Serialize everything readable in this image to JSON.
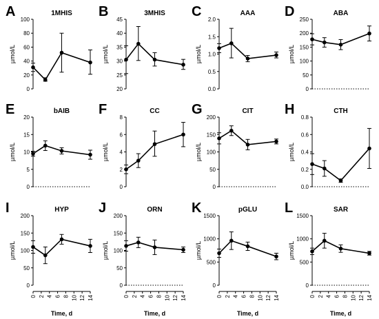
{
  "x_values": [
    0,
    3,
    7,
    14
  ],
  "x_ticks": [
    0,
    2,
    4,
    6,
    8,
    10,
    12,
    14
  ],
  "x_label": "Time, d",
  "y_label": "µmol/L",
  "chart_data": [
    {
      "type": "line",
      "letter": "A",
      "title": "1MHIS",
      "x": [
        0,
        3,
        7,
        14
      ],
      "y": [
        31,
        13,
        52,
        38
      ],
      "err_low": [
        25,
        11,
        24,
        21
      ],
      "err_high": [
        37,
        16,
        80,
        56
      ],
      "ylim": [
        0,
        100
      ],
      "yticks": [
        0,
        20,
        40,
        60,
        80,
        100
      ],
      "zero_line": false
    },
    {
      "type": "line",
      "letter": "B",
      "title": "3MHIS",
      "x": [
        0,
        3,
        7,
        14
      ],
      "y": [
        30.5,
        36.2,
        30.5,
        28.7
      ],
      "err_low": [
        25.5,
        30.2,
        28.2,
        27.0
      ],
      "err_high": [
        35.5,
        42.4,
        33.0,
        30.6
      ],
      "ylim": [
        20,
        45
      ],
      "yticks": [
        20,
        25,
        30,
        35,
        40,
        45
      ],
      "zero_line": false
    },
    {
      "type": "line",
      "letter": "C",
      "title": "AAA",
      "x": [
        0,
        3,
        7,
        14
      ],
      "y": [
        1.17,
        1.31,
        0.87,
        0.97
      ],
      "err_low": [
        1.04,
        0.89,
        0.78,
        0.89
      ],
      "err_high": [
        1.3,
        1.74,
        0.96,
        1.06
      ],
      "ylim": [
        0,
        2
      ],
      "yticks": [
        0,
        0.5,
        1.0,
        1.5,
        2.0
      ],
      "zero_line": false
    },
    {
      "type": "line",
      "letter": "D",
      "title": "ABA",
      "x": [
        0,
        3,
        7,
        14
      ],
      "y": [
        178,
        167,
        159,
        199
      ],
      "err_low": [
        158,
        150,
        141,
        172
      ],
      "err_high": [
        198,
        184,
        177,
        226
      ],
      "ylim": [
        0,
        250
      ],
      "yticks": [
        0,
        50,
        100,
        150,
        200,
        250
      ],
      "zero_line": true
    },
    {
      "type": "line",
      "letter": "E",
      "title": "bAIB",
      "x": [
        0,
        3,
        7,
        14
      ],
      "y": [
        9.5,
        11.8,
        10.3,
        9.2
      ],
      "err_low": [
        8.8,
        10.4,
        9.4,
        7.9
      ],
      "err_high": [
        10.2,
        13.2,
        11.2,
        10.5
      ],
      "ylim": [
        0,
        20
      ],
      "yticks": [
        0,
        5,
        10,
        15,
        20
      ],
      "zero_line": true
    },
    {
      "type": "line",
      "letter": "F",
      "title": "CC",
      "x": [
        0,
        3,
        7,
        14
      ],
      "y": [
        2.0,
        3.0,
        4.9,
        6.0
      ],
      "err_low": [
        1.5,
        2.2,
        3.5,
        4.6
      ],
      "err_high": [
        2.5,
        3.8,
        6.4,
        7.4
      ],
      "ylim": [
        0,
        8
      ],
      "yticks": [
        0,
        2,
        4,
        6,
        8
      ],
      "zero_line": false
    },
    {
      "type": "line",
      "letter": "G",
      "title": "CIT",
      "x": [
        0,
        3,
        7,
        14
      ],
      "y": [
        139,
        161,
        121,
        130
      ],
      "err_low": [
        123,
        147,
        106,
        123
      ],
      "err_high": [
        155,
        175,
        136,
        137
      ],
      "ylim": [
        0,
        200
      ],
      "yticks": [
        0,
        50,
        100,
        150,
        200
      ],
      "zero_line": true
    },
    {
      "type": "line",
      "letter": "H",
      "title": "CTH",
      "x": [
        0,
        3,
        7,
        14
      ],
      "y": [
        0.26,
        0.21,
        0.07,
        0.44
      ],
      "err_low": [
        0.14,
        0.12,
        0.05,
        0.21
      ],
      "err_high": [
        0.38,
        0.3,
        0.09,
        0.67
      ],
      "ylim": [
        0,
        0.8
      ],
      "yticks": [
        0,
        0.2,
        0.4,
        0.6,
        0.8
      ],
      "zero_line": true
    },
    {
      "type": "line",
      "letter": "I",
      "title": "HYP",
      "x": [
        0,
        3,
        7,
        14
      ],
      "y": [
        110,
        86,
        132,
        113
      ],
      "err_low": [
        92,
        62,
        118,
        94
      ],
      "err_high": [
        128,
        110,
        146,
        132
      ],
      "ylim": [
        0,
        200
      ],
      "yticks": [
        0,
        50,
        100,
        150,
        200
      ],
      "zero_line": false
    },
    {
      "type": "line",
      "letter": "J",
      "title": "ORN",
      "x": [
        0,
        3,
        7,
        14
      ],
      "y": [
        113,
        123,
        109,
        102
      ],
      "err_low": [
        98,
        108,
        88,
        94
      ],
      "err_high": [
        128,
        138,
        130,
        110
      ],
      "ylim": [
        0,
        200
      ],
      "yticks": [
        0,
        50,
        100,
        150,
        200
      ],
      "zero_line": true
    },
    {
      "type": "line",
      "letter": "K",
      "title": "pGLU",
      "x": [
        0,
        3,
        7,
        14
      ],
      "y": [
        690,
        960,
        840,
        620
      ],
      "err_low": [
        600,
        770,
        750,
        550
      ],
      "err_high": [
        780,
        1150,
        930,
        690
      ],
      "ylim": [
        0,
        1500
      ],
      "yticks": [
        0,
        500,
        1000,
        1500
      ],
      "zero_line": false
    },
    {
      "type": "line",
      "letter": "L",
      "title": "SAR",
      "x": [
        0,
        3,
        7,
        14
      ],
      "y": [
        730,
        960,
        790,
        690
      ],
      "err_low": [
        660,
        800,
        710,
        650
      ],
      "err_high": [
        800,
        1120,
        870,
        730
      ],
      "ylim": [
        0,
        1500
      ],
      "yticks": [
        0,
        500,
        1000,
        1500
      ],
      "zero_line": true
    }
  ]
}
